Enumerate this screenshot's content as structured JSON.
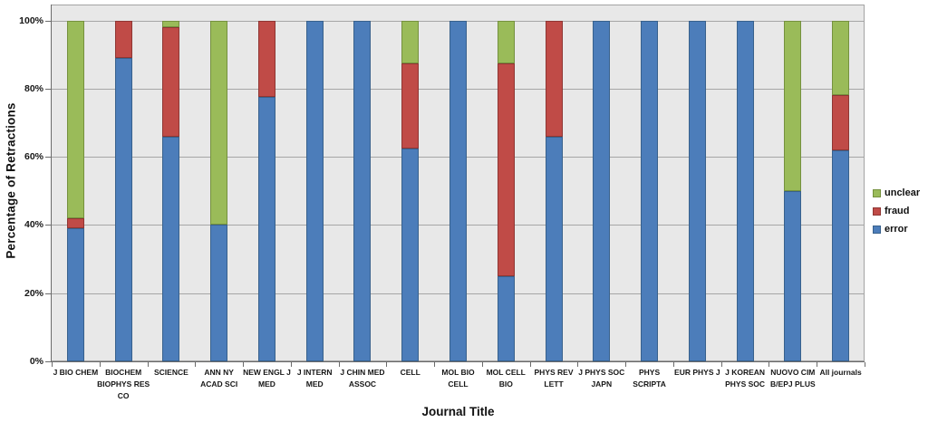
{
  "chart_data": {
    "type": "bar",
    "stacked": true,
    "xlabel": "Journal Title",
    "ylabel": "Percentage of Retractions",
    "ylim": [
      0,
      100
    ],
    "grid": "horizontal",
    "plot_bg": "#e8e8e8",
    "ytick_values": [
      0,
      20,
      40,
      60,
      80,
      100
    ],
    "ytick_labels": [
      "0%",
      "20%",
      "40%",
      "60%",
      "80%",
      "100%"
    ],
    "categories": [
      "J BIO CHEM",
      "BIOCHEM BIOPHYS RES CO",
      "SCIENCE",
      "ANN NY ACAD SCI",
      "NEW ENGL J MED",
      "J INTERN MED",
      "J CHIN MED ASSOC",
      "CELL",
      "MOL BIO CELL",
      "MOL CELL BIO",
      "PHYS REV LETT",
      "J PHYS SOC JAPN",
      "PHYS SCRIPTA",
      "EUR PHYS J",
      "J KOREAN PHYS SOC",
      "NUOVO CIM B/EPJ PLUS",
      "All journals"
    ],
    "category_label_lines": [
      [
        "J BIO CHEM"
      ],
      [
        "BIOCHEM",
        "BIOPHYS RES",
        "CO"
      ],
      [
        "SCIENCE"
      ],
      [
        "ANN NY",
        "ACAD SCI"
      ],
      [
        "NEW ENGL J",
        "MED"
      ],
      [
        "J INTERN",
        "MED"
      ],
      [
        "J CHIN MED",
        "ASSOC"
      ],
      [
        "CELL"
      ],
      [
        "MOL BIO",
        "CELL"
      ],
      [
        "MOL CELL",
        "BIO"
      ],
      [
        "PHYS REV",
        "LETT"
      ],
      [
        "J PHYS SOC",
        "JAPN"
      ],
      [
        "PHYS",
        "SCRIPTA"
      ],
      [
        "EUR PHYS J"
      ],
      [
        "J KOREAN",
        "PHYS SOC"
      ],
      [
        "NUOVO CIM",
        "B/EPJ PLUS"
      ],
      [
        "All journals"
      ]
    ],
    "series": [
      {
        "name": "error",
        "color": "#4c7dba",
        "border_color": "#38618c",
        "values": [
          39,
          89,
          66,
          40,
          77.5,
          100,
          100,
          62.5,
          100,
          25,
          66,
          100,
          100,
          100,
          100,
          50,
          62
        ]
      },
      {
        "name": "fraud",
        "color": "#c04b47",
        "border_color": "#8f3633",
        "values": [
          3,
          11,
          32,
          0,
          22.5,
          0,
          0,
          25,
          0,
          62.5,
          34,
          0,
          0,
          0,
          0,
          0,
          16
        ]
      },
      {
        "name": "unclear",
        "color": "#9abb59",
        "border_color": "#75913e",
        "values": [
          58,
          0,
          2,
          60,
          0,
          0,
          0,
          12.5,
          0,
          12.5,
          0,
          0,
          0,
          0,
          0,
          50,
          22
        ]
      }
    ],
    "legend": {
      "position": "right",
      "items": [
        "unclear",
        "fraud",
        "error"
      ]
    }
  }
}
